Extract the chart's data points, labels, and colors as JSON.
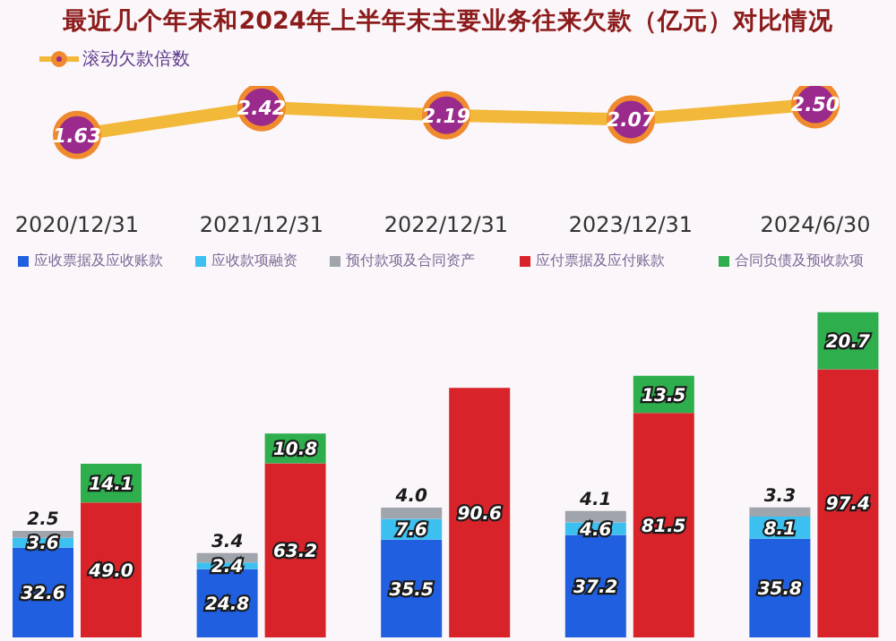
{
  "chart_data": [
    {
      "type": "line",
      "title": "最近几个年末和2024年上半年末主要业务往来欠款（亿元）对比情况",
      "categories": [
        "2020/12/31",
        "2021/12/31",
        "2022/12/31",
        "2023/12/31",
        "2024/6/30"
      ],
      "series": [
        {
          "name": "滚动欠款倍数",
          "color": "#f2b83a",
          "values": [
            1.63,
            2.42,
            2.19,
            2.07,
            2.5
          ],
          "value_labels": [
            "1.63",
            "2.42",
            "2.19",
            "2.07",
            "2.50"
          ]
        }
      ],
      "marker": "circle",
      "legend": "top left"
    },
    {
      "type": "bar",
      "stacked": true,
      "categories": [
        "2020/12/31",
        "2021/12/31",
        "2022/12/31",
        "2023/12/31",
        "2024/6/30"
      ],
      "tick_labels": false,
      "legend": "top left",
      "series": [
        {
          "name": "应收票据及应收账款",
          "color": "#1f5fe0",
          "values": [
            32.6,
            24.8,
            35.5,
            37.2,
            35.8
          ],
          "value_labels": [
            "32.6",
            "24.8",
            "35.5",
            "37.2",
            "35.8"
          ]
        },
        {
          "name": "应收款项融资",
          "color": "#3cc0f0",
          "values": [
            3.6,
            2.4,
            7.6,
            4.6,
            8.1
          ],
          "value_labels": [
            "3.6",
            "2.4",
            "7.6",
            "4.6",
            "8.1"
          ]
        },
        {
          "name": "预付款项及合同资产",
          "color": "#a0a4ac",
          "values": [
            2.5,
            3.4,
            4.0,
            4.1,
            3.3
          ],
          "value_labels": [
            "2.5",
            "3.4",
            "4.0",
            "4.1",
            "3.3"
          ]
        }
      ]
    },
    {
      "type": "bar",
      "stacked": true,
      "categories": [
        "2020/12/31",
        "2021/12/31",
        "2022/12/31",
        "2023/12/31",
        "2024/6/30"
      ],
      "tick_labels": false,
      "legend": "top right",
      "series": [
        {
          "name": "应付票据及应付账款",
          "color": "#d8232a",
          "values": [
            49.0,
            63.2,
            90.6,
            81.5,
            97.4
          ],
          "value_labels": [
            "49.0",
            "63.2",
            "90.6",
            "81.5",
            "97.4"
          ]
        },
        {
          "name": "合同负债及预收款项",
          "color": "#2fae4e",
          "values": [
            14.1,
            10.8,
            null,
            13.5,
            20.7
          ],
          "value_labels": [
            "14.1",
            "10.8",
            null,
            "13.5",
            "20.7"
          ]
        }
      ]
    }
  ]
}
